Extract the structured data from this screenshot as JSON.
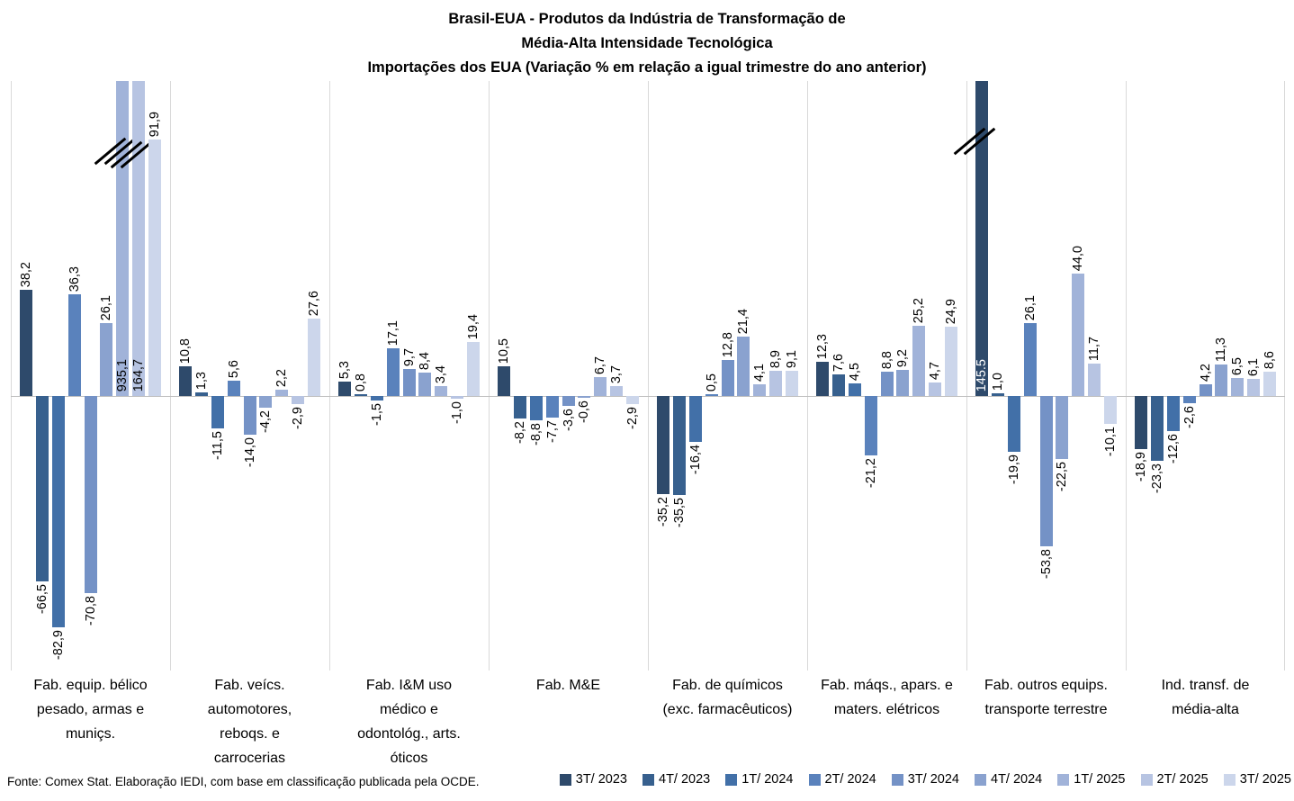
{
  "title": {
    "lines": [
      "Brasil-EUA - Produtos da Indústria de Transformação de",
      "Média-Alta Intensidade Tecnológica",
      "Importações dos EUA (Variação % em relação a igual trimestre do ano anterior)"
    ]
  },
  "footer": {
    "source": "Fonte: Comex Stat. Elaboração IEDI, com base em classificação publicada pela OCDE."
  },
  "chart_data": {
    "type": "bar",
    "unit": "percent variation vs same quarter of previous year",
    "categories": [
      "Fab. equip. bélico\npesado, armas e\nmuniçs.",
      "Fab. veícs.\nautomotores,\nreboqs. e\ncarrocerias",
      "Fab. I&M uso\nmédico e\nodontológ., arts.\nóticos",
      "Fab. M&E",
      "Fab. de químicos\n(exc. farmacêuticos)",
      "Fab. máqs., apars. e\nmaters. elétricos",
      "Fab. outros equips.\ntransporte terrestre",
      "Ind. transf. de\nmédia-alta"
    ],
    "series": [
      {
        "name": "3T/ 2023",
        "color": "#2E4A6B",
        "values": [
          38.2,
          10.8,
          5.3,
          10.5,
          -35.2,
          12.3,
          145.5,
          -18.9
        ]
      },
      {
        "name": "4T/ 2023",
        "color": "#37608E",
        "values": [
          -66.5,
          1.3,
          0.8,
          -8.2,
          -35.5,
          7.6,
          1.0,
          -23.3
        ]
      },
      {
        "name": "1T/ 2024",
        "color": "#4270A8",
        "values": [
          -82.9,
          -11.5,
          -1.5,
          -8.8,
          -16.4,
          4.5,
          -19.9,
          -12.6
        ]
      },
      {
        "name": "2T/ 2024",
        "color": "#5A82BC",
        "values": [
          36.3,
          5.6,
          17.1,
          -7.7,
          0.5,
          -21.2,
          26.1,
          -2.6
        ]
      },
      {
        "name": "3T/ 2024",
        "color": "#7492C6",
        "values": [
          -70.8,
          -14.0,
          9.7,
          -3.6,
          12.8,
          8.8,
          -53.8,
          4.2
        ]
      },
      {
        "name": "4T/ 2024",
        "color": "#8AA2CF",
        "values": [
          26.1,
          -4.2,
          8.4,
          -0.6,
          21.4,
          9.2,
          -22.5,
          11.3
        ]
      },
      {
        "name": "1T/ 2025",
        "color": "#A1B3D9",
        "values": [
          935.1,
          2.2,
          3.4,
          6.7,
          4.1,
          25.2,
          44.0,
          6.5
        ]
      },
      {
        "name": "2T/ 2025",
        "color": "#B7C4E2",
        "values": [
          164.7,
          -2.9,
          -1.0,
          3.7,
          8.9,
          4.7,
          11.7,
          6.1
        ]
      },
      {
        "name": "3T/ 2025",
        "color": "#CCD6EB",
        "values": [
          91.9,
          27.6,
          19.4,
          -2.9,
          9.1,
          24.9,
          -10.1,
          8.6
        ]
      }
    ],
    "ylim": [
      -98,
      113
    ],
    "xlabel": "",
    "ylabel": "",
    "grid": "vertical category separators only, no y-axis ticks",
    "legend_position": "bottom-right",
    "data_label_rotation": -90,
    "clipped_bars": [
      {
        "category": 0,
        "series": 6,
        "value": 935.1,
        "label": "935,1",
        "label_color": "#000000",
        "break_y": 168
      },
      {
        "category": 0,
        "series": 7,
        "value": 164.7,
        "label": "164,7",
        "label_color": "#000000",
        "break_y": 172
      },
      {
        "category": 6,
        "series": 0,
        "value": 145.5,
        "label": "145.5",
        "label_color": "#FFFFFF",
        "break_y": 157
      }
    ]
  }
}
